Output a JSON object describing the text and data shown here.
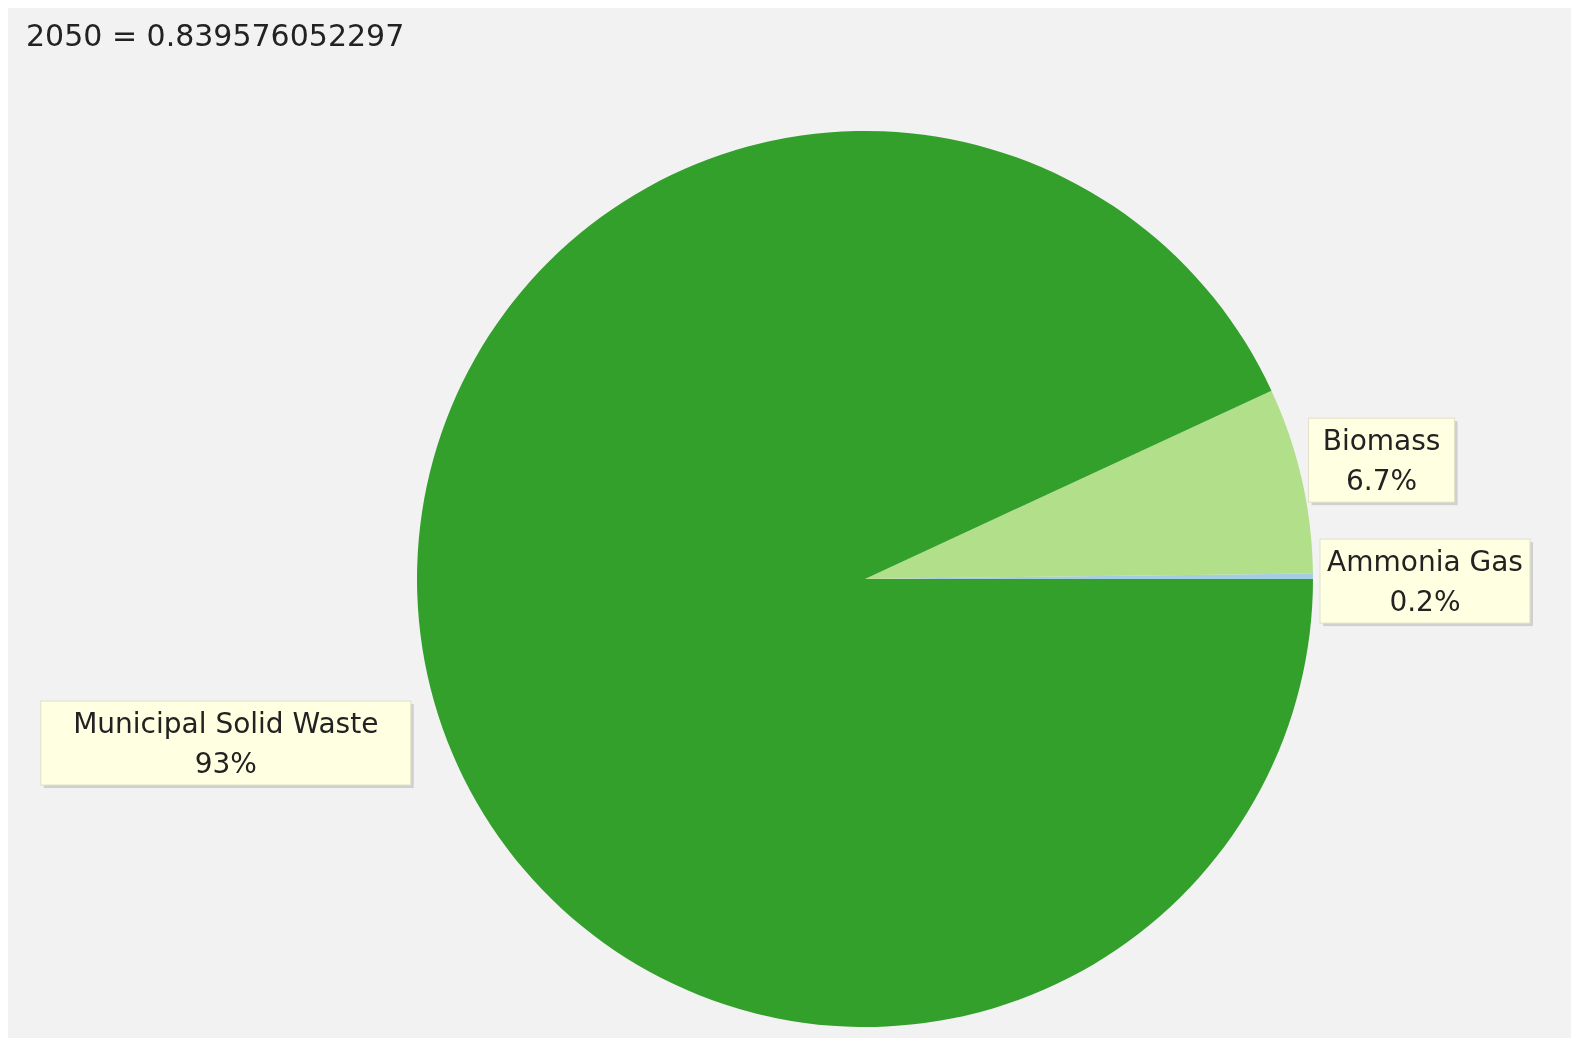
{
  "chart_data": {
    "type": "pie",
    "title": "2050 = 0.839576052297",
    "categories": [
      "Ammonia Gas",
      "Biomass",
      "Municipal Solid Waste"
    ],
    "values": [
      0.2,
      6.7,
      93
    ],
    "value_labels": [
      "0.2%",
      "6.7%",
      "93%"
    ],
    "colors": [
      "#a6cee3",
      "#b2df8a",
      "#33a02c"
    ]
  }
}
